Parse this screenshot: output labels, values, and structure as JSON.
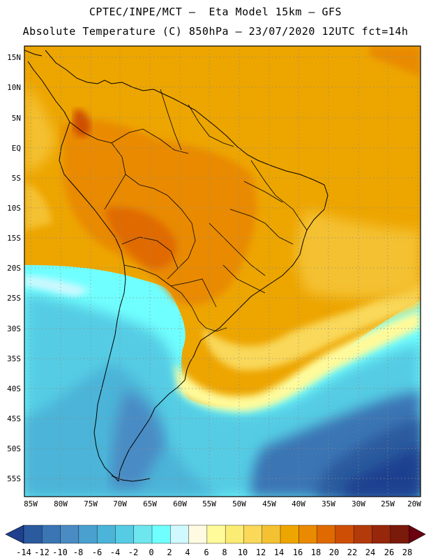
{
  "header": {
    "line1": "CPTEC/INPE/MCT –  Eta Model 15km – GFS",
    "line2": "Absolute Temperature (C) 850hPa – 23/07/2020 12UTC fct=14h"
  },
  "map": {
    "lat_labels": [
      "15N",
      "10N",
      "5N",
      "EQ",
      "5S",
      "10S",
      "15S",
      "20S",
      "25S",
      "30S",
      "35S",
      "40S",
      "45S",
      "50S",
      "55S"
    ],
    "lon_labels": [
      "85W",
      "80W",
      "75W",
      "70W",
      "65W",
      "60W",
      "55W",
      "50W",
      "45W",
      "40W",
      "35W",
      "30W",
      "25W",
      "20W"
    ]
  },
  "colorbar": {
    "labels": [
      "-14",
      "-12",
      "-10",
      "-8",
      "-6",
      "-4",
      "-2",
      "0",
      "2",
      "4",
      "6",
      "8",
      "10",
      "12",
      "14",
      "16",
      "18",
      "20",
      "22",
      "24",
      "26",
      "28"
    ],
    "colors": [
      "#1f3f8f",
      "#2b5a9e",
      "#3a75b4",
      "#4a8bc4",
      "#4aa0cf",
      "#4bb4d8",
      "#55cce4",
      "#6ee6ee",
      "#70ffff",
      "#d0f8ff",
      "#fffbe2",
      "#fffa9a",
      "#fbec73",
      "#f9d85a",
      "#f4c132",
      "#eda500",
      "#e98a00",
      "#e06a00",
      "#cf4e06",
      "#b33a0a",
      "#96270a",
      "#7a1a0a",
      "#6a0010"
    ],
    "low_arrow_color": "#1f3f8f",
    "high_arrow_color": "#6a0010"
  }
}
